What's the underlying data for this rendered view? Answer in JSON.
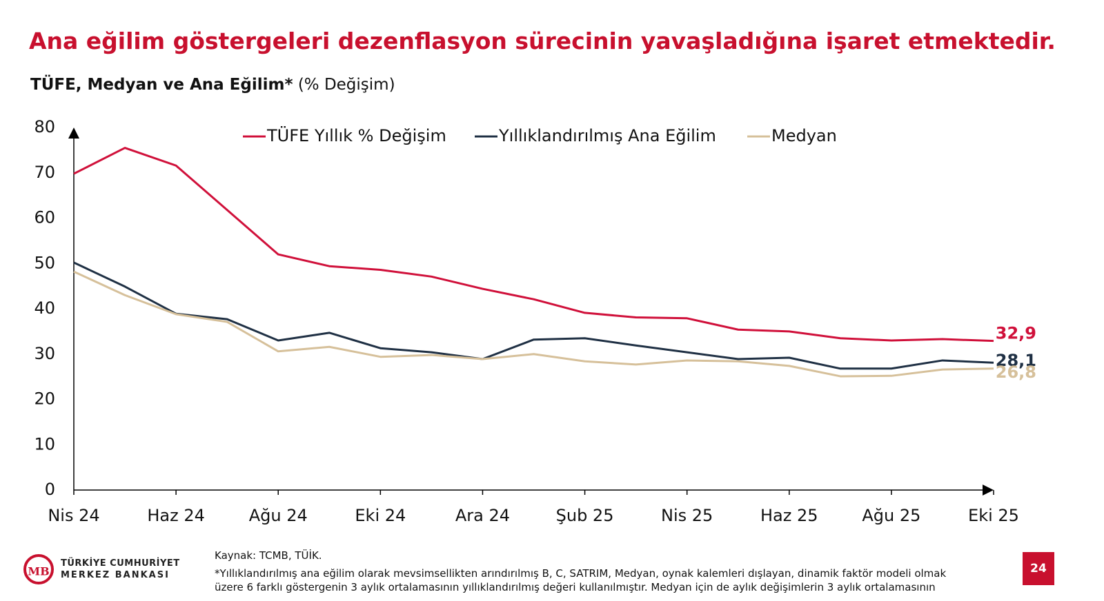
{
  "chart_data": {
    "type": "line",
    "title": "Ana eğilim göstergeleri dezenflasyon sürecinin yavaşladığına işaret etmektedir.",
    "subtitle": "TÜFE, Medyan ve Ana Eğilim*",
    "subtitle_unit": "(% Değişim)",
    "categories": [
      "Nis 24",
      null,
      "Haz 24",
      null,
      "Ağu 24",
      null,
      "Eki 24",
      null,
      "Ara 24",
      null,
      "Şub 25",
      null,
      "Nis 25",
      null,
      "Haz 25",
      null,
      "Ağu 25",
      null,
      "Eki 25"
    ],
    "series": [
      {
        "name": "TÜFE Yıllık % Değişim",
        "color": "#d0103a",
        "values": [
          69.8,
          75.5,
          71.6,
          61.8,
          52.0,
          49.4,
          48.6,
          47.1,
          44.4,
          42.1,
          39.1,
          38.1,
          37.9,
          35.4,
          35.0,
          33.5,
          33.0,
          33.3,
          32.9
        ],
        "value_labels": [
          null,
          null,
          null,
          null,
          null,
          null,
          null,
          null,
          null,
          null,
          null,
          null,
          null,
          null,
          null,
          null,
          null,
          null,
          "32,9"
        ]
      },
      {
        "name": "Yıllıklandırılmış Ana Eğilim",
        "color": "#1f3044",
        "values": [
          50.2,
          44.9,
          38.9,
          37.7,
          33.0,
          34.7,
          31.3,
          30.4,
          28.9,
          33.2,
          33.5,
          31.9,
          30.4,
          28.9,
          29.2,
          26.8,
          26.8,
          28.6,
          28.1
        ],
        "value_labels": [
          null,
          null,
          null,
          null,
          null,
          null,
          null,
          null,
          null,
          null,
          null,
          null,
          null,
          null,
          null,
          null,
          null,
          null,
          "28,1"
        ]
      },
      {
        "name": "Medyan",
        "color": "#d6c09a",
        "values": [
          48.2,
          43.0,
          38.8,
          37.1,
          30.6,
          31.6,
          29.4,
          29.8,
          28.9,
          30.0,
          28.4,
          27.7,
          28.6,
          28.4,
          27.4,
          25.1,
          25.2,
          26.6,
          26.8
        ],
        "value_labels": [
          null,
          null,
          null,
          null,
          null,
          null,
          null,
          null,
          null,
          null,
          null,
          null,
          null,
          null,
          null,
          null,
          null,
          null,
          "26,8"
        ]
      }
    ],
    "ylim": [
      0,
      80
    ],
    "yticks": [
      0,
      10,
      20,
      30,
      40,
      50,
      60,
      70,
      80
    ],
    "grid": false,
    "legend": "top"
  },
  "footer": {
    "logo_line1": "TÜRKİYE CUMHURİYET",
    "logo_line2": "MERKEZ BANKASI",
    "source": "Kaynak: TCMB, TÜİK.",
    "footnote": "*Yıllıklandırılmış ana eğilim olarak mevsimsellikten arındırılmış B, C, SATRIM, Medyan, oynak kalemleri dışlayan, dinamik faktör modeli olmak üzere 6 farklı göstergenin 3 aylık ortalamasının yıllıklandırılmış değeri kullanılmıştır. Medyan için de aylık değişimlerin 3 aylık ortalamasının",
    "page_number": "24"
  }
}
